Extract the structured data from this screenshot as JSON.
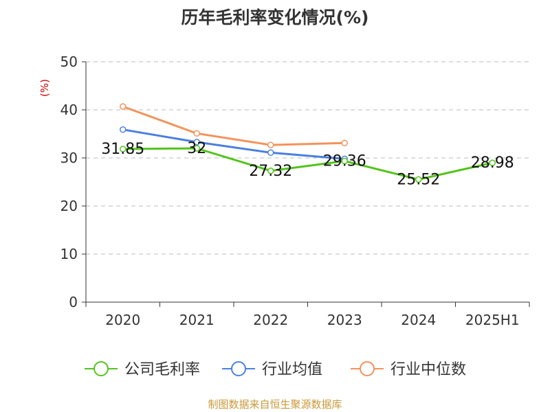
{
  "chart_data": {
    "type": "line",
    "title": "历年毛利率变化情况(%)",
    "ylabel": "(%)",
    "xlabel": "",
    "categories": [
      "2020",
      "2021",
      "2022",
      "2023",
      "2024",
      "2025H1"
    ],
    "ylim": [
      0,
      50
    ],
    "yticks": [
      0,
      10,
      20,
      30,
      40,
      50
    ],
    "grid": true,
    "legend_position": "bottom",
    "series": [
      {
        "name": "公司毛利率",
        "color": "#52c41a",
        "values": [
          31.85,
          32,
          27.32,
          29.36,
          25.52,
          28.98
        ],
        "labels": [
          "31.85",
          "32",
          "27.32",
          "29.36",
          "25.52",
          "28.98"
        ]
      },
      {
        "name": "行业均值",
        "color": "#4a7fe0",
        "values": [
          35.9,
          33.3,
          31.1,
          29.8,
          null,
          null
        ]
      },
      {
        "name": "行业中位数",
        "color": "#f5925a",
        "values": [
          40.7,
          35.1,
          32.7,
          33.1,
          null,
          null
        ]
      }
    ]
  },
  "source_text": "制图数据来自恒生聚源数据库"
}
